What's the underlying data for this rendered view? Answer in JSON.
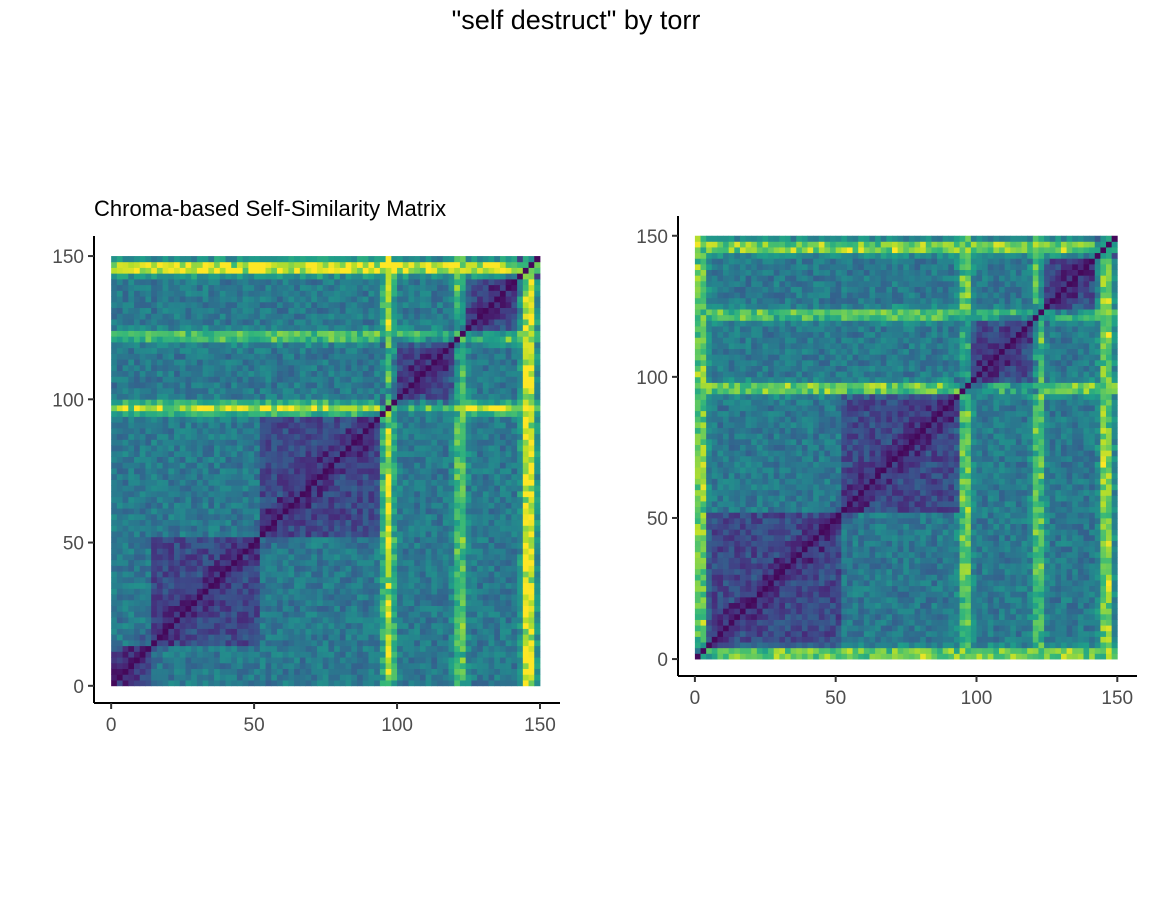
{
  "figure": {
    "title": "\"self destruct\" by torr"
  },
  "chart_data": [
    {
      "type": "heatmap",
      "title": "Chroma-based Self-Similarity Matrix",
      "xlabel": "",
      "ylabel": "",
      "n": 75,
      "step": 2,
      "xlim": [
        -6,
        157
      ],
      "ylim": [
        -6,
        157
      ],
      "x_ticks": [
        0,
        50,
        100,
        150
      ],
      "y_ticks": [
        0,
        50,
        100,
        150
      ],
      "tick_labels": [
        "0",
        "50",
        "100",
        "150"
      ],
      "colormap": "viridis",
      "bright_bands": [
        {
          "pos": 97,
          "strength": 0.55
        },
        {
          "pos": 122,
          "strength": 0.4
        },
        {
          "pos": 146,
          "strength": 0.75
        }
      ],
      "block_boundaries": [
        14,
        52,
        94,
        122,
        142
      ],
      "legend": "none",
      "grid": false
    },
    {
      "type": "heatmap",
      "title": "",
      "xlabel": "",
      "ylabel": "",
      "n": 75,
      "step": 2,
      "xlim": [
        -6,
        157
      ],
      "ylim": [
        -6,
        157
      ],
      "x_ticks": [
        0,
        50,
        100,
        150
      ],
      "y_ticks": [
        0,
        50,
        100,
        150
      ],
      "tick_labels": [
        "0",
        "50",
        "100",
        "150"
      ],
      "colormap": "viridis",
      "bright_bands": [
        {
          "pos": 2,
          "strength": 0.5
        },
        {
          "pos": 96,
          "strength": 0.45
        },
        {
          "pos": 122,
          "strength": 0.4
        },
        {
          "pos": 146,
          "strength": 0.55
        }
      ],
      "block_boundaries": [
        4,
        52,
        94,
        122,
        142
      ],
      "legend": "none",
      "grid": false
    }
  ],
  "colors": {
    "viridis": [
      "#440154",
      "#482878",
      "#3e4989",
      "#31688e",
      "#26828e",
      "#1f9e89",
      "#35b779",
      "#6ece58",
      "#b5de2b",
      "#fde725"
    ]
  }
}
